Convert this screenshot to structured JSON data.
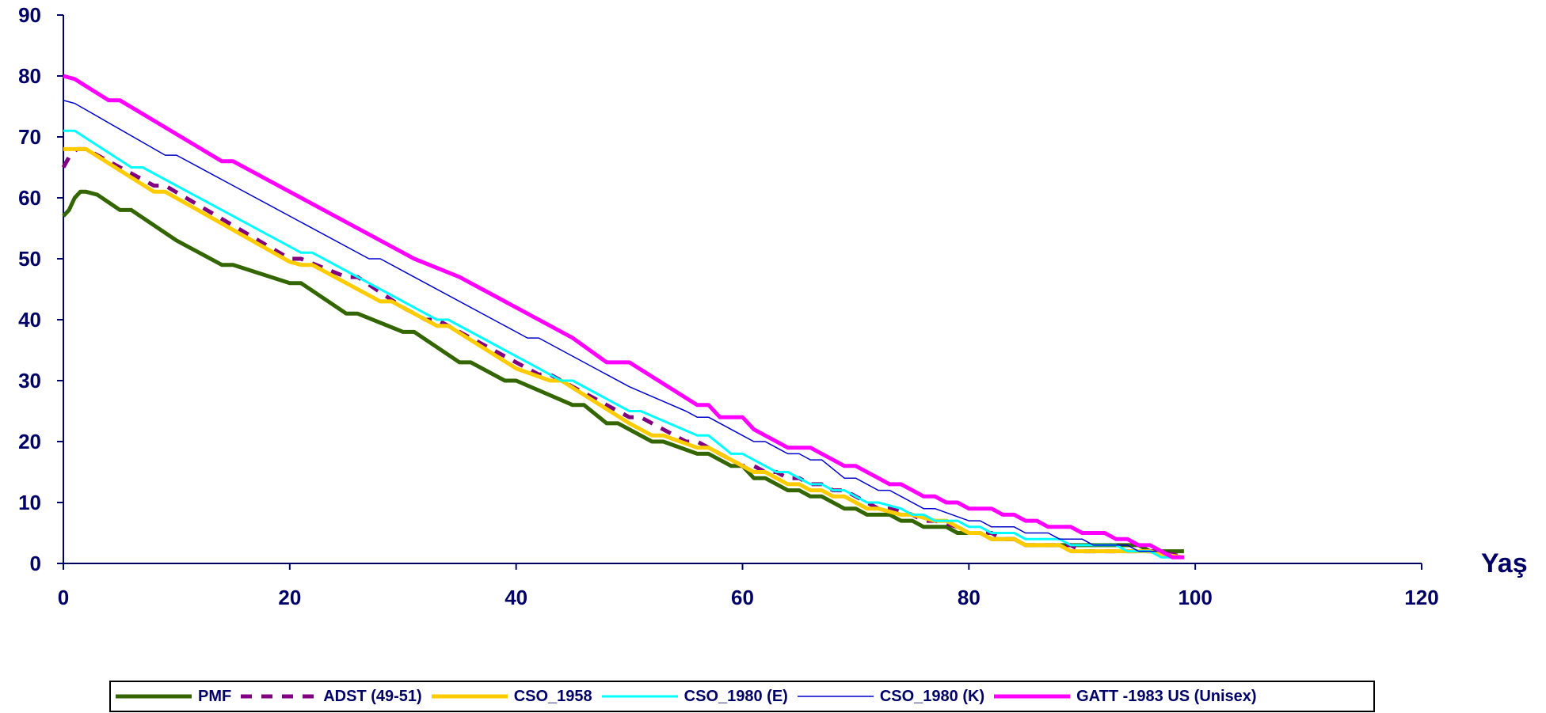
{
  "chart_data": {
    "type": "line",
    "title": "",
    "xlabel": "Yaş",
    "ylabel": "",
    "xlim": [
      0,
      120
    ],
    "ylim": [
      0,
      90
    ],
    "x_ticks": [
      0,
      20,
      40,
      60,
      80,
      100,
      120
    ],
    "y_ticks": [
      0,
      10,
      20,
      30,
      40,
      50,
      60,
      70,
      80,
      90
    ],
    "grid": false,
    "legend_position": "bottom",
    "series": [
      {
        "name": "PMF",
        "color": "#336600",
        "style": "solid-thick",
        "points": [
          [
            0,
            57
          ],
          [
            0.5,
            58
          ],
          [
            1,
            60
          ],
          [
            1.5,
            61
          ],
          [
            2,
            61
          ],
          [
            3,
            60.5
          ],
          [
            5,
            58
          ],
          [
            6,
            58
          ],
          [
            10,
            53
          ],
          [
            14,
            49
          ],
          [
            15,
            49
          ],
          [
            20,
            46
          ],
          [
            21,
            46
          ],
          [
            25,
            41
          ],
          [
            26,
            41
          ],
          [
            30,
            38
          ],
          [
            31,
            38
          ],
          [
            35,
            33
          ],
          [
            36,
            33
          ],
          [
            39,
            30
          ],
          [
            40,
            30
          ],
          [
            45,
            26
          ],
          [
            46,
            26
          ],
          [
            48,
            23
          ],
          [
            49,
            23
          ],
          [
            52,
            20
          ],
          [
            53,
            20
          ],
          [
            56,
            18
          ],
          [
            57,
            18
          ],
          [
            59,
            16
          ],
          [
            60,
            16
          ],
          [
            61,
            14
          ],
          [
            62,
            14
          ],
          [
            64,
            12
          ],
          [
            65,
            12
          ],
          [
            66,
            11
          ],
          [
            67,
            11
          ],
          [
            69,
            9
          ],
          [
            70,
            9
          ],
          [
            71,
            8
          ],
          [
            73,
            8
          ],
          [
            74,
            7
          ],
          [
            75,
            7
          ],
          [
            76,
            6
          ],
          [
            78,
            6
          ],
          [
            79,
            5
          ],
          [
            81,
            5
          ],
          [
            82,
            4
          ],
          [
            84,
            4
          ],
          [
            85,
            3
          ],
          [
            95,
            3
          ],
          [
            96,
            2
          ],
          [
            99,
            2
          ]
        ]
      },
      {
        "name": "ADST (49-51)",
        "color": "#800080",
        "style": "dashed",
        "points": [
          [
            0,
            65
          ],
          [
            0.6,
            67
          ],
          [
            1.2,
            68
          ],
          [
            2,
            68
          ],
          [
            8,
            62
          ],
          [
            9,
            62
          ],
          [
            20,
            50
          ],
          [
            21,
            50
          ],
          [
            25,
            47
          ],
          [
            26,
            47
          ],
          [
            30,
            42
          ],
          [
            31,
            41
          ],
          [
            32,
            40
          ],
          [
            33,
            40
          ],
          [
            40,
            33
          ],
          [
            41,
            32
          ],
          [
            42,
            31
          ],
          [
            43,
            31
          ],
          [
            50,
            24
          ],
          [
            51,
            24
          ],
          [
            55,
            20
          ],
          [
            56,
            20
          ],
          [
            60,
            16
          ],
          [
            61,
            16
          ],
          [
            62,
            15
          ],
          [
            63,
            15
          ],
          [
            64,
            14
          ],
          [
            65,
            14
          ],
          [
            66,
            13
          ],
          [
            67,
            13
          ],
          [
            68,
            12
          ],
          [
            69,
            12
          ],
          [
            70,
            11
          ],
          [
            71,
            10
          ],
          [
            72,
            9
          ],
          [
            73,
            9
          ],
          [
            75,
            8
          ],
          [
            76,
            7
          ],
          [
            77,
            7
          ],
          [
            79,
            6
          ],
          [
            80,
            5
          ],
          [
            82,
            5
          ],
          [
            83,
            4
          ],
          [
            84,
            4
          ],
          [
            85,
            3
          ],
          [
            89,
            3
          ],
          [
            90,
            2
          ],
          [
            95,
            2
          ],
          [
            96,
            2
          ],
          [
            98,
            1.5
          ],
          [
            99,
            1
          ]
        ]
      },
      {
        "name": "CSO_1958",
        "color": "#FFCC00",
        "style": "solid-thick",
        "points": [
          [
            0,
            68
          ],
          [
            2,
            68
          ],
          [
            8,
            61
          ],
          [
            9,
            61
          ],
          [
            20,
            49.5
          ],
          [
            21,
            49
          ],
          [
            22,
            49
          ],
          [
            28,
            43
          ],
          [
            29,
            43
          ],
          [
            33,
            39
          ],
          [
            34,
            39
          ],
          [
            40,
            32
          ],
          [
            43,
            30
          ],
          [
            44,
            30
          ],
          [
            50,
            23
          ],
          [
            51,
            22
          ],
          [
            52,
            21
          ],
          [
            53,
            21
          ],
          [
            56,
            19
          ],
          [
            57,
            19
          ],
          [
            59,
            17
          ],
          [
            60,
            16
          ],
          [
            61,
            15
          ],
          [
            62,
            15
          ],
          [
            64,
            13
          ],
          [
            65,
            13
          ],
          [
            66,
            12
          ],
          [
            67,
            12
          ],
          [
            68,
            11
          ],
          [
            69,
            11
          ],
          [
            71,
            9
          ],
          [
            72,
            9
          ],
          [
            74,
            8
          ],
          [
            75,
            8
          ],
          [
            77,
            7
          ],
          [
            78,
            7
          ],
          [
            80,
            5
          ],
          [
            81,
            5
          ],
          [
            82,
            4
          ],
          [
            84,
            4
          ],
          [
            85,
            3
          ],
          [
            88,
            3
          ],
          [
            89,
            2
          ],
          [
            96,
            2
          ],
          [
            97,
            1.5
          ],
          [
            99,
            1
          ]
        ]
      },
      {
        "name": "CSO_1980 (E)",
        "color": "#00FFFF",
        "style": "solid",
        "points": [
          [
            0,
            71
          ],
          [
            1,
            71
          ],
          [
            6,
            65
          ],
          [
            7,
            65
          ],
          [
            20,
            52
          ],
          [
            21,
            51
          ],
          [
            22,
            51
          ],
          [
            30,
            43
          ],
          [
            31,
            42
          ],
          [
            33,
            40
          ],
          [
            34,
            40
          ],
          [
            42,
            32
          ],
          [
            43,
            31
          ],
          [
            44,
            30
          ],
          [
            45,
            30
          ],
          [
            50,
            25
          ],
          [
            51,
            25
          ],
          [
            56,
            21
          ],
          [
            57,
            21
          ],
          [
            59,
            18
          ],
          [
            60,
            18
          ],
          [
            62,
            16
          ],
          [
            63,
            15
          ],
          [
            64,
            15
          ],
          [
            66,
            13
          ],
          [
            67,
            13
          ],
          [
            68,
            12
          ],
          [
            69,
            12
          ],
          [
            70,
            11
          ],
          [
            71,
            10
          ],
          [
            72,
            10
          ],
          [
            74,
            9
          ],
          [
            75,
            8
          ],
          [
            76,
            8
          ],
          [
            77,
            7
          ],
          [
            79,
            7
          ],
          [
            80,
            6
          ],
          [
            81,
            6
          ],
          [
            82,
            5
          ],
          [
            84,
            5
          ],
          [
            85,
            4
          ],
          [
            88,
            4
          ],
          [
            89,
            3
          ],
          [
            93,
            3
          ],
          [
            94,
            2
          ],
          [
            96,
            2
          ],
          [
            97,
            1
          ],
          [
            98,
            1
          ]
        ]
      },
      {
        "name": "CSO_1980 (K)",
        "color": "#0000CC",
        "style": "solid-thin",
        "points": [
          [
            0,
            76
          ],
          [
            1,
            75.5
          ],
          [
            9,
            67
          ],
          [
            10,
            67
          ],
          [
            15,
            62
          ],
          [
            27,
            50
          ],
          [
            28,
            50
          ],
          [
            40,
            38
          ],
          [
            41,
            37
          ],
          [
            42,
            37
          ],
          [
            50,
            29
          ],
          [
            55,
            25
          ],
          [
            56,
            24
          ],
          [
            57,
            24
          ],
          [
            60,
            21
          ],
          [
            61,
            20
          ],
          [
            62,
            20
          ],
          [
            63,
            19
          ],
          [
            64,
            18
          ],
          [
            65,
            18
          ],
          [
            66,
            17
          ],
          [
            67,
            17
          ],
          [
            69,
            14
          ],
          [
            70,
            14
          ],
          [
            72,
            12
          ],
          [
            73,
            12
          ],
          [
            76,
            9
          ],
          [
            77,
            9
          ],
          [
            80,
            7
          ],
          [
            81,
            7
          ],
          [
            82,
            6
          ],
          [
            84,
            6
          ],
          [
            85,
            5
          ],
          [
            87,
            5
          ],
          [
            88,
            4
          ],
          [
            90,
            4
          ],
          [
            91,
            3
          ],
          [
            94,
            3
          ],
          [
            95,
            2
          ],
          [
            97,
            2
          ],
          [
            98,
            1
          ],
          [
            99,
            1
          ]
        ]
      },
      {
        "name": "GATT -1983 US (Unisex)",
        "color": "#FF00FF",
        "style": "solid-thick",
        "points": [
          [
            0,
            80
          ],
          [
            1,
            79.5
          ],
          [
            4,
            76
          ],
          [
            5,
            76
          ],
          [
            14,
            66
          ],
          [
            15,
            66
          ],
          [
            20,
            61
          ],
          [
            30,
            51
          ],
          [
            31,
            50
          ],
          [
            35,
            47
          ],
          [
            36,
            46
          ],
          [
            37,
            45
          ],
          [
            40,
            42
          ],
          [
            45,
            37
          ],
          [
            48,
            33
          ],
          [
            49,
            33
          ],
          [
            50,
            33
          ],
          [
            56,
            26
          ],
          [
            57,
            26
          ],
          [
            58,
            24
          ],
          [
            60,
            24
          ],
          [
            61,
            22
          ],
          [
            62,
            21
          ],
          [
            64,
            19
          ],
          [
            66,
            19
          ],
          [
            67,
            18
          ],
          [
            68,
            17
          ],
          [
            69,
            16
          ],
          [
            70,
            16
          ],
          [
            72,
            14
          ],
          [
            73,
            13
          ],
          [
            74,
            13
          ],
          [
            75,
            12
          ],
          [
            76,
            11
          ],
          [
            77,
            11
          ],
          [
            78,
            10
          ],
          [
            79,
            10
          ],
          [
            80,
            9
          ],
          [
            82,
            9
          ],
          [
            83,
            8
          ],
          [
            84,
            8
          ],
          [
            85,
            7
          ],
          [
            86,
            7
          ],
          [
            87,
            6
          ],
          [
            89,
            6
          ],
          [
            90,
            5
          ],
          [
            92,
            5
          ],
          [
            93,
            4
          ],
          [
            94,
            4
          ],
          [
            95,
            3
          ],
          [
            96,
            3
          ],
          [
            97,
            2
          ],
          [
            98,
            1
          ],
          [
            99,
            1
          ]
        ]
      }
    ]
  }
}
